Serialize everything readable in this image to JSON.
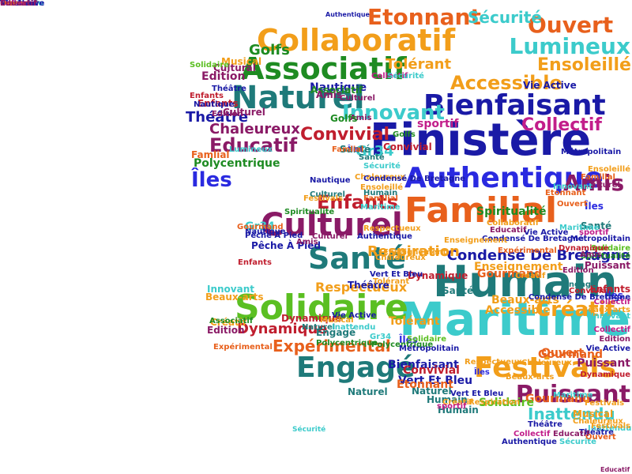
{
  "colors": {
    "orange": "#e8601c",
    "amber": "#f29e1a",
    "navy": "#1a1aa6",
    "blue": "#2a2ae0",
    "green": "#1e8b22",
    "lime": "#5bbf22",
    "teal": "#1f7a7a",
    "cyan": "#3ccbcb",
    "purple": "#8a1a66",
    "magenta": "#c21e8a",
    "red": "#c01e2e",
    "gold": "#e5b21a"
  },
  "words": [
    {
      "text": "Finistère",
      "color": "navy"
    },
    {
      "text": "Humain",
      "color": "teal"
    },
    {
      "text": "Maritime",
      "color": "cyan"
    },
    {
      "text": "Authentique",
      "color": "blue"
    },
    {
      "text": "Collaboratif",
      "color": "amber"
    },
    {
      "text": "Bienfaisant",
      "color": "navy"
    },
    {
      "text": "Familial",
      "color": "orange"
    },
    {
      "text": "Culturel",
      "color": "purple"
    },
    {
      "text": "Solidaire",
      "color": "lime"
    },
    {
      "text": "Associatif",
      "color": "green"
    },
    {
      "text": "Festivals",
      "color": "amber"
    },
    {
      "text": "Naturel",
      "color": "teal"
    },
    {
      "text": "Santé",
      "color": "teal"
    },
    {
      "text": "Engagé",
      "color": "teal"
    },
    {
      "text": "Puissant",
      "color": "purple"
    },
    {
      "text": "Etonnant",
      "color": "orange"
    },
    {
      "text": "Ouvert",
      "color": "orange"
    },
    {
      "text": "Lumineux",
      "color": "cyan"
    },
    {
      "text": "Educatif",
      "color": "purple"
    },
    {
      "text": "Accessible",
      "color": "amber"
    },
    {
      "text": "Innovant",
      "color": "cyan"
    },
    {
      "text": "Amis",
      "color": "purple"
    },
    {
      "text": "Îles",
      "color": "blue"
    },
    {
      "text": "Enfants",
      "color": "red"
    },
    {
      "text": "Gr34",
      "color": "cyan"
    },
    {
      "text": "Créatif",
      "color": "amber"
    },
    {
      "text": "Condensé De Bretagne",
      "color": "navy"
    },
    {
      "text": "Expérimental",
      "color": "orange"
    },
    {
      "text": "Dynamique",
      "color": "red"
    },
    {
      "text": "Respiration",
      "color": "amber"
    },
    {
      "text": "Convivial",
      "color": "red"
    },
    {
      "text": "Sécurité",
      "color": "cyan"
    },
    {
      "text": "Collectif",
      "color": "magenta"
    },
    {
      "text": "Golfs",
      "color": "green"
    },
    {
      "text": "Edition",
      "color": "purple"
    },
    {
      "text": "Musical",
      "color": "amber"
    },
    {
      "text": "Beaux-arts",
      "color": "amber"
    },
    {
      "text": "Ensoleillé",
      "color": "amber"
    },
    {
      "text": "Chaleureux",
      "color": "purple"
    },
    {
      "text": "Inattendu",
      "color": "cyan"
    },
    {
      "text": "Théâtre",
      "color": "navy"
    },
    {
      "text": "Tolérant",
      "color": "amber"
    },
    {
      "text": "Gourmand",
      "color": "orange"
    },
    {
      "text": "sportif",
      "color": "magenta"
    },
    {
      "text": "Vert Et Bleu",
      "color": "navy"
    },
    {
      "text": "Respectueux",
      "color": "amber"
    },
    {
      "text": "Vie Active",
      "color": "navy"
    },
    {
      "text": "Spiritualité",
      "color": "green"
    },
    {
      "text": "Nautique",
      "color": "navy"
    },
    {
      "text": "Polycentrique",
      "color": "green"
    },
    {
      "text": "Pêche À Pied",
      "color": "navy"
    },
    {
      "text": "Métropolitain",
      "color": "navy"
    },
    {
      "text": "Enseignement",
      "color": "amber"
    },
    {
      "text": "Cultural",
      "color": "purple"
    },
    {
      "text": "Famlial",
      "color": "orange"
    },
    {
      "text": "Associatif",
      "color": "green"
    },
    {
      "text": "Culturel",
      "color": "purple"
    },
    {
      "text": "Naturel",
      "color": "teal"
    },
    {
      "text": "Enfants",
      "color": "red"
    },
    {
      "text": "Santé",
      "color": "teal"
    },
    {
      "text": "Gr34",
      "color": "cyan"
    },
    {
      "text": "Golfs",
      "color": "green"
    },
    {
      "text": "Théâtre",
      "color": "navy"
    },
    {
      "text": "Amis",
      "color": "purple"
    },
    {
      "text": "Convivial",
      "color": "red"
    },
    {
      "text": "Dynamique",
      "color": "red"
    },
    {
      "text": "Chaleureux",
      "color": "amber"
    },
    {
      "text": "Solidaire",
      "color": "lime"
    },
    {
      "text": "Culturel",
      "color": "teal"
    },
    {
      "text": "Nautique",
      "color": "navy"
    },
    {
      "text": "Innovant",
      "color": "cyan"
    },
    {
      "text": "Créatif",
      "color": "amber"
    },
    {
      "text": "Edition",
      "color": "purple"
    },
    {
      "text": "Expérimental",
      "color": "orange"
    },
    {
      "text": "Dynamique",
      "color": "red"
    },
    {
      "text": "Beaux-arts",
      "color": "amber"
    },
    {
      "text": "Bienfaisant",
      "color": "navy"
    },
    {
      "text": "Enfants",
      "color": "red"
    },
    {
      "text": "Tolérant",
      "color": "amber"
    },
    {
      "text": "Ouvert",
      "color": "orange"
    },
    {
      "text": "Puissant",
      "color": "purple"
    },
    {
      "text": "Humain",
      "color": "teal"
    },
    {
      "text": "Naturel",
      "color": "teal"
    },
    {
      "text": "Convivial",
      "color": "red"
    },
    {
      "text": "Etonnant",
      "color": "orange"
    },
    {
      "text": "Gourmand",
      "color": "orange"
    },
    {
      "text": "Musical",
      "color": "amber"
    },
    {
      "text": "Solidaire",
      "color": "lime"
    },
    {
      "text": "Humain",
      "color": "teal"
    },
    {
      "text": "Inattendu",
      "color": "cyan"
    },
    {
      "text": "Respiration",
      "color": "amber"
    },
    {
      "text": "Sécurité",
      "color": "cyan"
    },
    {
      "text": "Festivals",
      "color": "amber"
    },
    {
      "text": "Théâtre",
      "color": "navy"
    },
    {
      "text": "Ouvert",
      "color": "orange"
    },
    {
      "text": "Educatif",
      "color": "purple"
    },
    {
      "text": "Collectif",
      "color": "magenta"
    },
    {
      "text": "Authentique",
      "color": "navy"
    },
    {
      "text": "Engagé",
      "color": "teal"
    },
    {
      "text": "Sécurité",
      "color": "cyan"
    },
    {
      "text": "Familial",
      "color": "orange"
    },
    {
      "text": "Îles",
      "color": "blue"
    },
    {
      "text": "Santé",
      "color": "teal"
    },
    {
      "text": "Gourmand",
      "color": "orange"
    },
    {
      "text": "Vie Active",
      "color": "navy"
    },
    {
      "text": "Créatif",
      "color": "amber"
    },
    {
      "text": "Accessible",
      "color": "amber"
    },
    {
      "text": "Culturel",
      "color": "purple"
    },
    {
      "text": "Îles",
      "color": "blue"
    },
    {
      "text": "Ensoleillé",
      "color": "amber"
    },
    {
      "text": "Golfs",
      "color": "green"
    },
    {
      "text": "Santé",
      "color": "teal"
    },
    {
      "text": "sportif",
      "color": "magenta"
    },
    {
      "text": "Métropolitain",
      "color": "navy"
    },
    {
      "text": "Solidaire",
      "color": "lime"
    },
    {
      "text": "Spiritualité",
      "color": "green"
    },
    {
      "text": "Puissant",
      "color": "purple"
    },
    {
      "text": "Enfants",
      "color": "red"
    },
    {
      "text": "Îles",
      "color": "blue"
    },
    {
      "text": "Dynamique",
      "color": "red"
    },
    {
      "text": "Amis",
      "color": "purple"
    },
    {
      "text": "Collectif",
      "color": "magenta"
    },
    {
      "text": "Beaux-arts",
      "color": "amber"
    },
    {
      "text": "Innovant",
      "color": "cyan"
    },
    {
      "text": "Vie Active",
      "color": "navy"
    },
    {
      "text": "Edition",
      "color": "purple"
    },
    {
      "text": "Polycentrique",
      "color": "green"
    },
    {
      "text": "Gr34",
      "color": "cyan"
    },
    {
      "text": "Maritime",
      "color": "cyan"
    },
    {
      "text": "Authentique",
      "color": "navy"
    },
    {
      "text": "Îles",
      "color": "blue"
    },
    {
      "text": "Ensoleillé",
      "color": "amber"
    },
    {
      "text": "Condensé De Bretagne",
      "color": "navy"
    },
    {
      "text": "Santé",
      "color": "teal"
    },
    {
      "text": "Familial",
      "color": "orange"
    },
    {
      "text": "Sécurité",
      "color": "cyan"
    },
    {
      "text": "Famlial",
      "color": "orange"
    },
    {
      "text": "Associatif",
      "color": "green"
    },
    {
      "text": "Enfants",
      "color": "red"
    },
    {
      "text": "Théâtre",
      "color": "navy"
    },
    {
      "text": "Nautique",
      "color": "navy"
    },
    {
      "text": "Edition",
      "color": "purple"
    },
    {
      "text": "Lumineux",
      "color": "cyan"
    },
    {
      "text": "Culturel",
      "color": "purple"
    },
    {
      "text": "Collectif",
      "color": "magenta"
    },
    {
      "text": "Sécurité",
      "color": "cyan"
    },
    {
      "text": "Amis",
      "color": "purple"
    },
    {
      "text": "Humain",
      "color": "teal"
    },
    {
      "text": "Spiritualité",
      "color": "green"
    },
    {
      "text": "Festivals",
      "color": "amber"
    },
    {
      "text": "Pêche À Pied",
      "color": "navy"
    },
    {
      "text": "Nautique",
      "color": "navy"
    },
    {
      "text": "Gourmand",
      "color": "orange"
    },
    {
      "text": "Culturel",
      "color": "purple"
    },
    {
      "text": "Vie Active",
      "color": "navy"
    },
    {
      "text": "Musical",
      "color": "amber"
    },
    {
      "text": "Amis",
      "color": "purple"
    },
    {
      "text": "Naturel",
      "color": "teal"
    },
    {
      "text": "Inattendu",
      "color": "cyan"
    },
    {
      "text": "Polycentrique",
      "color": "green"
    },
    {
      "text": "Respectueux",
      "color": "amber"
    },
    {
      "text": "Enseignement",
      "color": "amber"
    },
    {
      "text": "Chaleureux",
      "color": "amber"
    },
    {
      "text": "Vert Et Bleu",
      "color": "navy"
    },
    {
      "text": "Tolérant",
      "color": "amber"
    },
    {
      "text": "Métropolitain",
      "color": "navy"
    },
    {
      "text": "Condensé De Bretagne",
      "color": "navy"
    },
    {
      "text": "Educatif",
      "color": "purple"
    },
    {
      "text": "Expérimental",
      "color": "orange"
    },
    {
      "text": "Créatif",
      "color": "amber"
    },
    {
      "text": "Solidaire",
      "color": "lime"
    },
    {
      "text": "sportif",
      "color": "magenta"
    },
    {
      "text": "Vert Et Bleu",
      "color": "navy"
    },
    {
      "text": "Respectueux",
      "color": "amber"
    },
    {
      "text": "Îles",
      "color": "blue"
    },
    {
      "text": "Beaux-arts",
      "color": "amber"
    },
    {
      "text": "Chaleureux",
      "color": "amber"
    },
    {
      "text": "Enseignement",
      "color": "amber"
    },
    {
      "text": "Collaboratif",
      "color": "amber"
    },
    {
      "text": "Maritime",
      "color": "cyan"
    },
    {
      "text": "Edition",
      "color": "purple"
    },
    {
      "text": "Engagé",
      "color": "teal"
    },
    {
      "text": "Convivial",
      "color": "red"
    },
    {
      "text": "Condensé De Bretagne",
      "color": "navy"
    },
    {
      "text": "Ouvert",
      "color": "orange"
    },
    {
      "text": "Etonnant",
      "color": "orange"
    },
    {
      "text": "Innovant",
      "color": "cyan"
    },
    {
      "text": "Théâtre",
      "color": "navy"
    },
    {
      "text": "Collectif",
      "color": "magenta"
    },
    {
      "text": "Authentique",
      "color": "navy"
    },
    {
      "text": "Educatif",
      "color": "purple"
    },
    {
      "text": "Dynamique",
      "color": "red"
    },
    {
      "text": "Festivals",
      "color": "amber"
    },
    {
      "text": "Chaleureux",
      "color": "amber"
    },
    {
      "text": "Maritime",
      "color": "cyan"
    },
    {
      "text": "Inattendu",
      "color": "cyan"
    },
    {
      "text": "Puissant",
      "color": "purple"
    },
    {
      "text": "Vie Active",
      "color": "navy"
    },
    {
      "text": "Théâtre",
      "color": "navy"
    },
    {
      "text": "Ouvert",
      "color": "orange"
    },
    {
      "text": "Collectif",
      "color": "magenta"
    },
    {
      "text": "Educatif",
      "color": "purple"
    }
  ]
}
